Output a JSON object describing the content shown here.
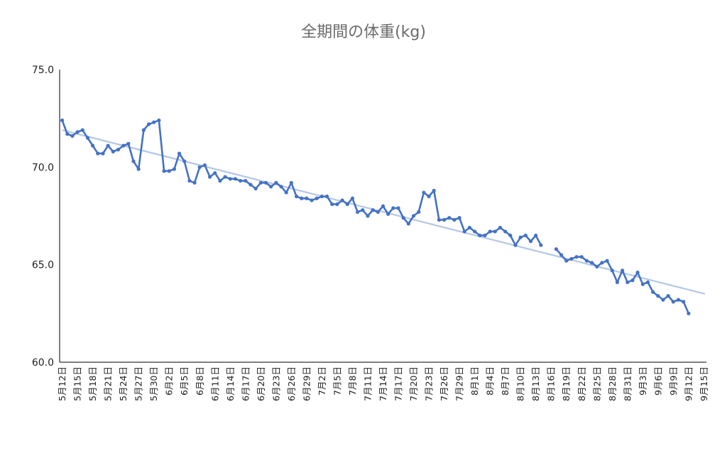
{
  "chart_data": {
    "type": "line",
    "title": "全期間の体重(kg)",
    "xlabel": "",
    "ylabel": "",
    "ylim": [
      60,
      75
    ],
    "yticks": [
      "75.0",
      "70.0",
      "65.0",
      "60.0"
    ],
    "ytick_values": [
      75,
      70,
      65,
      60
    ],
    "grid": false,
    "legend": "none",
    "x_tick_labels": [
      "5月12日",
      "5月15日",
      "5月18日",
      "5月21日",
      "5月24日",
      "5月27日",
      "5月30日",
      "6月2日",
      "6月5日",
      "6月8日",
      "6月11日",
      "6月14日",
      "6月17日",
      "6月20日",
      "6月23日",
      "6月26日",
      "6月29日",
      "7月2日",
      "7月5日",
      "7月8日",
      "7月11日",
      "7月14日",
      "7月17日",
      "7月20日",
      "7月23日",
      "7月26日",
      "7月29日",
      "8月1日",
      "8月4日",
      "8月7日",
      "8月10日",
      "8月13日",
      "8月16日",
      "8月19日",
      "8月22日",
      "8月25日",
      "8月28日",
      "8月31日",
      "9月3日",
      "9月6日",
      "9月9日",
      "9月12日",
      "9月15日"
    ],
    "x_day_count": 127,
    "series": [
      {
        "color": "#4472c4",
        "values": [
          72.4,
          71.7,
          71.6,
          71.8,
          71.9,
          71.5,
          71.1,
          70.7,
          70.7,
          71.1,
          70.8,
          70.9,
          71.1,
          71.2,
          70.3,
          69.9,
          71.9,
          72.2,
          72.3,
          72.4,
          69.8,
          69.8,
          69.9,
          70.7,
          70.3,
          69.3,
          69.2,
          70.0,
          70.1,
          69.5,
          69.7,
          69.3,
          69.5,
          69.4,
          69.4,
          69.3,
          69.3,
          69.1,
          68.9,
          69.2,
          69.2,
          69.0,
          69.2,
          69.0,
          68.7,
          69.2,
          68.5,
          68.4,
          68.4,
          68.3,
          68.4,
          68.5,
          68.5,
          68.1,
          68.1,
          68.3,
          68.1,
          68.4,
          67.7,
          67.8,
          67.5,
          67.8,
          67.7,
          68.0,
          67.6,
          67.9,
          67.9,
          67.4,
          67.1,
          67.5,
          67.7,
          68.7,
          68.5,
          68.8,
          67.3,
          67.3,
          67.4,
          67.3,
          67.4,
          66.7,
          66.9,
          66.7,
          66.5,
          66.5,
          66.7,
          66.7,
          66.9,
          66.7,
          66.5,
          66.0,
          66.4,
          66.5,
          66.2,
          66.5,
          66.0,
          null,
          null,
          65.8,
          65.5,
          65.2,
          65.3,
          65.4,
          65.4,
          65.2,
          65.1,
          64.9,
          65.1,
          65.2,
          64.7,
          64.1,
          64.7,
          64.1,
          64.2,
          64.6,
          64.0,
          64.1,
          63.6,
          63.4,
          63.2,
          63.4,
          63.1,
          63.2,
          63.1,
          62.5,
          null,
          null,
          null
        ]
      },
      {
        "name": "",
        "color": "#b4c7e7",
        "type": "trendline",
        "values": [
          71.9,
          63.5
        ]
      }
    ]
  }
}
